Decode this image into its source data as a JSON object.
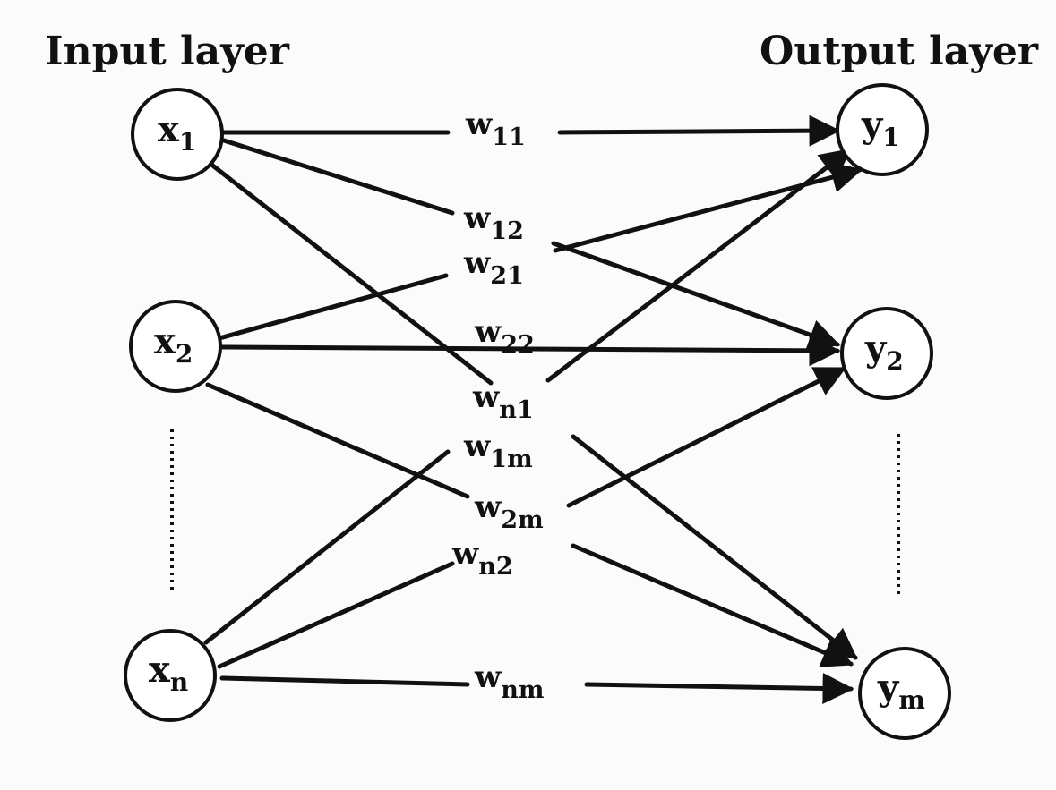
{
  "titles": {
    "input_layer": "Input layer",
    "output_layer": "Output layer"
  },
  "input_nodes": [
    {
      "base": "x",
      "sub": "1"
    },
    {
      "base": "x",
      "sub": "2"
    },
    {
      "base": "x",
      "sub": "n"
    }
  ],
  "output_nodes": [
    {
      "base": "y",
      "sub": "1"
    },
    {
      "base": "y",
      "sub": "2"
    },
    {
      "base": "y",
      "sub": "m"
    }
  ],
  "weights": {
    "w11": {
      "base": "w",
      "sub": "11"
    },
    "w12": {
      "base": "w",
      "sub": "12"
    },
    "w21": {
      "base": "w",
      "sub": "21"
    },
    "w22": {
      "base": "w",
      "sub": "22"
    },
    "wn1": {
      "base": "w",
      "sub": "n1"
    },
    "w1m": {
      "base": "w",
      "sub": "1m"
    },
    "w2m": {
      "base": "w",
      "sub": "2m"
    },
    "wn2": {
      "base": "w",
      "sub": "n2"
    },
    "wnm": {
      "base": "w",
      "sub": "nm"
    }
  }
}
